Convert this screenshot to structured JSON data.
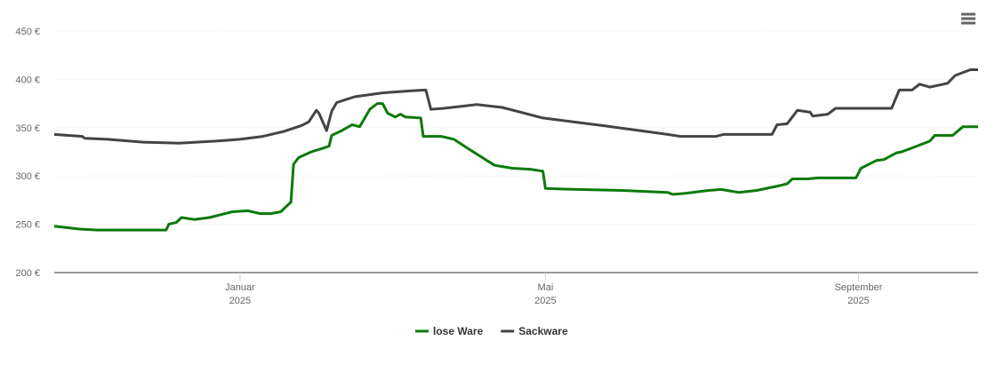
{
  "chart_data": {
    "type": "line",
    "xlim": [
      -73,
      290
    ],
    "xticks": [
      {
        "value": 0,
        "label": "Januar 2025"
      },
      {
        "value": 120,
        "label": "Mai 2025"
      },
      {
        "value": 243,
        "label": "September 2025"
      }
    ],
    "ylim": [
      200,
      450
    ],
    "yticks": [
      {
        "value": 200,
        "label": "200 €"
      },
      {
        "value": 250,
        "label": "250 €"
      },
      {
        "value": 300,
        "label": "300 €"
      },
      {
        "value": 350,
        "label": "350 €"
      },
      {
        "value": 400,
        "label": "400 €"
      },
      {
        "value": 450,
        "label": "450 €"
      }
    ],
    "grid": true,
    "legend": "bottom",
    "series": [
      {
        "name": "lose Ware",
        "color": "#0a7a0a",
        "x": [
          -73,
          -63,
          -56,
          -29,
          -28,
          -25,
          -23,
          -18,
          -12,
          -3,
          3,
          8,
          12,
          16,
          20,
          21,
          23,
          28,
          33,
          35,
          36,
          40,
          44,
          47,
          51,
          54,
          56,
          58,
          61,
          63,
          65,
          71,
          72,
          79,
          84,
          91,
          100,
          107,
          114,
          119,
          120,
          133,
          150,
          168,
          170,
          175,
          184,
          189,
          196,
          203,
          212,
          215,
          217,
          223,
          227,
          242,
          244,
          250,
          253,
          258,
          260,
          266,
          271,
          273,
          280,
          284,
          290
        ],
        "values": [
          248,
          245,
          244,
          244,
          250,
          252,
          257,
          255,
          257,
          263,
          264,
          261,
          261,
          263,
          273,
          312,
          319,
          325,
          329,
          331,
          342,
          347,
          353,
          351,
          369,
          375,
          375,
          365,
          361,
          364,
          361,
          360,
          341,
          341,
          338,
          326,
          311,
          308,
          307,
          305,
          287,
          286,
          285,
          283,
          281,
          282,
          285,
          286,
          283,
          285,
          290,
          292,
          297,
          297,
          298,
          298,
          308,
          316,
          317,
          324,
          325,
          331,
          336,
          342,
          342,
          351,
          351
        ]
      },
      {
        "name": "Sackware",
        "color": "#434348",
        "x": [
          -73,
          -62,
          -61,
          -52,
          -38,
          -24,
          -10,
          0,
          9,
          17,
          24,
          27,
          30,
          31,
          34,
          36,
          38,
          45,
          56,
          66,
          73,
          75,
          80,
          93,
          103,
          119,
          143,
          168,
          173,
          187,
          190,
          203,
          209,
          211,
          215,
          219,
          224,
          225,
          231,
          234,
          256,
          259,
          264,
          267,
          271,
          278,
          281,
          287,
          290
        ],
        "values": [
          343,
          341,
          339,
          338,
          335,
          334,
          336,
          338,
          341,
          346,
          352,
          356,
          368,
          365,
          347,
          367,
          376,
          382,
          386,
          388,
          389,
          369,
          370,
          374,
          371,
          360,
          352,
          343,
          341,
          341,
          343,
          343,
          343,
          353,
          354,
          368,
          366,
          362,
          364,
          370,
          370,
          389,
          389,
          395,
          392,
          396,
          404,
          410,
          410
        ]
      }
    ]
  }
}
